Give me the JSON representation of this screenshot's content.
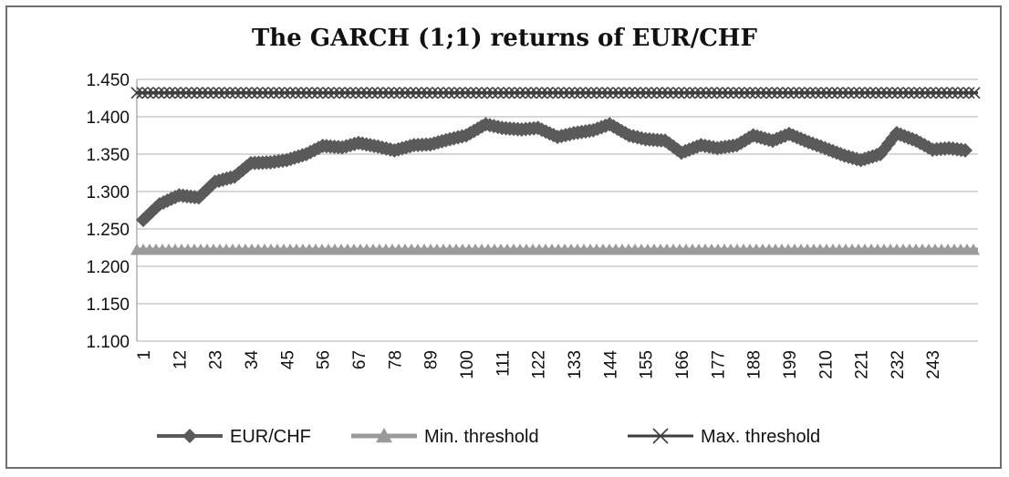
{
  "chart_data": {
    "type": "line",
    "title": "The GARCH (1;1) returns of  EUR/CHF",
    "xlabel": "",
    "ylabel": "",
    "ylim": [
      1.1,
      1.45
    ],
    "yticks": [
      "1.100",
      "1.150",
      "1.200",
      "1.250",
      "1.300",
      "1.350",
      "1.400",
      "1.450"
    ],
    "xlim": [
      1,
      253
    ],
    "xticks": [
      "1",
      "12",
      "23",
      "34",
      "45",
      "56",
      "67",
      "78",
      "89",
      "100",
      "111",
      "122",
      "133",
      "144",
      "155",
      "166",
      "177",
      "188",
      "199",
      "210",
      "221",
      "232",
      "243"
    ],
    "grid": "horizontal",
    "legend_position": "bottom",
    "series": [
      {
        "name": "EUR/CHF",
        "color": "#5a5a5a",
        "marker": "diamond",
        "x": [
          1,
          6,
          12,
          18,
          23,
          29,
          34,
          40,
          45,
          51,
          56,
          62,
          67,
          73,
          78,
          84,
          89,
          95,
          100,
          106,
          111,
          117,
          122,
          128,
          133,
          139,
          144,
          150,
          155,
          161,
          166,
          172,
          177,
          183,
          188,
          194,
          199,
          205,
          210,
          216,
          221,
          227,
          232,
          238,
          243,
          248,
          253
        ],
        "y": [
          1.262,
          1.283,
          1.295,
          1.292,
          1.313,
          1.32,
          1.338,
          1.339,
          1.342,
          1.35,
          1.361,
          1.359,
          1.365,
          1.36,
          1.355,
          1.362,
          1.363,
          1.37,
          1.375,
          1.39,
          1.385,
          1.383,
          1.385,
          1.373,
          1.378,
          1.382,
          1.39,
          1.375,
          1.37,
          1.368,
          1.352,
          1.362,
          1.358,
          1.362,
          1.375,
          1.368,
          1.377,
          1.366,
          1.358,
          1.348,
          1.342,
          1.35,
          1.378,
          1.368,
          1.356,
          1.358,
          1.355
        ]
      },
      {
        "name": "Min. threshold",
        "color": "#9a9a9a",
        "marker": "triangle",
        "constant": 1.222
      },
      {
        "name": "Max. threshold",
        "color": "#3c3c3c",
        "marker": "x",
        "constant": 1.432
      }
    ]
  }
}
